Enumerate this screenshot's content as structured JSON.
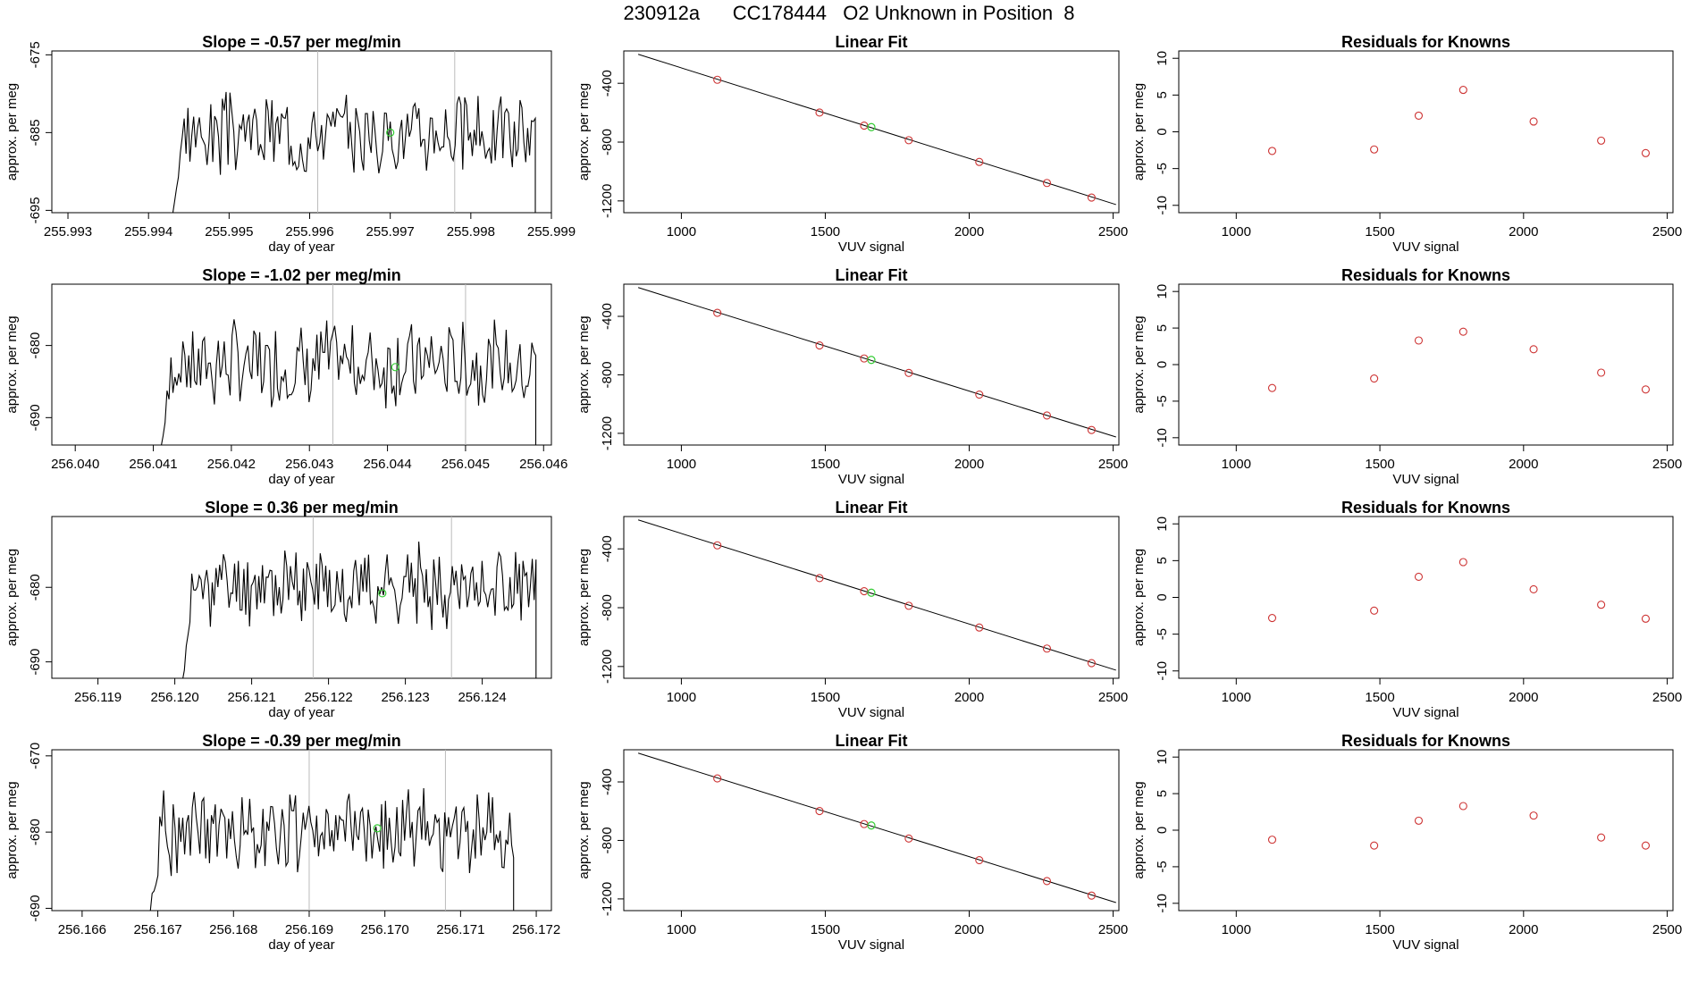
{
  "page_title": "230912a      CC178444   O2 Unknown in Position  8",
  "colors": {
    "line": "#000000",
    "known_point": "#cd3333",
    "unknown_point": "#33cc33",
    "vline": "#bbbbbb"
  },
  "rows": [
    {
      "trace": {
        "title": "Slope =  -0.57  per meg/min",
        "xlabel": "day of year",
        "ylabel": "approx. per meg",
        "xlim": [
          255.9928,
          255.999
        ],
        "ylim": [
          -695.3,
          -674.5
        ],
        "xticks": [
          "255.993",
          "255.994",
          "255.995",
          "255.996",
          "255.997",
          "255.998",
          "255.999"
        ],
        "yticks": [
          "-675",
          "-685",
          "-695"
        ],
        "vlines": [
          255.9961,
          255.9978
        ],
        "start": 255.9943,
        "end": 255.9988,
        "mean": -685,
        "amp": 4.2,
        "flat": -695.5,
        "seed": 3,
        "unknown": {
          "x": 255.997,
          "y": -685
        }
      },
      "fit": {
        "title": "Linear Fit",
        "xlabel": "VUV signal",
        "ylabel": "approx. per meg",
        "xlim": [
          800,
          2520
        ],
        "ylim": [
          -1280,
          -180
        ],
        "xticks": [
          "1000",
          "1500",
          "2000",
          "2500"
        ],
        "yticks": [
          "-400",
          "-800",
          "-1200"
        ],
        "line": [
          [
            850,
            -203
          ],
          [
            2510,
            -1225
          ]
        ],
        "knowns_x": [
          1125,
          1480,
          1635,
          1790,
          2035,
          2270,
          2425
        ],
        "knowns_y": [
          -376,
          -599,
          -688,
          -787,
          -935,
          -1078,
          -1177
        ],
        "unknown": {
          "x": 1660,
          "y": -698
        }
      },
      "resid": {
        "title": "Residuals for Knowns",
        "xlabel": "VUV signal",
        "ylabel": "approx. per meg",
        "xlim": [
          800,
          2520
        ],
        "ylim": [
          -11,
          11
        ],
        "xticks": [
          "1000",
          "1500",
          "2000",
          "2500"
        ],
        "yticks": [
          "-10",
          "-5",
          "0",
          "5",
          "10"
        ],
        "x": [
          1125,
          1480,
          1635,
          1790,
          2035,
          2270,
          2425
        ],
        "y": [
          -2.6,
          -2.4,
          2.2,
          5.7,
          1.4,
          -1.2,
          -2.9
        ]
      }
    },
    {
      "trace": {
        "title": "Slope =  -1.02  per meg/min",
        "xlabel": "day of year",
        "ylabel": "approx. per meg",
        "xlim": [
          256.0397,
          256.0461
        ],
        "ylim": [
          -693.8,
          -671.5
        ],
        "xticks": [
          "256.040",
          "256.041",
          "256.042",
          "256.043",
          "256.044",
          "256.045",
          "256.046"
        ],
        "yticks": [
          "-680",
          "-690"
        ],
        "vlines": [
          256.0433,
          256.045
        ],
        "start": 256.0411,
        "end": 256.0459,
        "mean": -682.5,
        "amp": 4.8,
        "flat": -694,
        "seed": 7,
        "unknown": {
          "x": 256.0441,
          "y": -683
        }
      },
      "fit": {
        "title": "Linear Fit",
        "xlabel": "VUV signal",
        "ylabel": "approx. per meg",
        "xlim": [
          800,
          2520
        ],
        "ylim": [
          -1280,
          -180
        ],
        "xticks": [
          "1000",
          "1500",
          "2000",
          "2500"
        ],
        "yticks": [
          "-400",
          "-800",
          "-1200"
        ],
        "line": [
          [
            850,
            -203
          ],
          [
            2510,
            -1225
          ]
        ],
        "knowns_x": [
          1125,
          1480,
          1635,
          1790,
          2035,
          2270,
          2425
        ],
        "knowns_y": [
          -376,
          -599,
          -688,
          -787,
          -935,
          -1078,
          -1177
        ],
        "unknown": {
          "x": 1660,
          "y": -698
        }
      },
      "resid": {
        "title": "Residuals for Knowns",
        "xlabel": "VUV signal",
        "ylabel": "approx. per meg",
        "xlim": [
          800,
          2520
        ],
        "ylim": [
          -11,
          11
        ],
        "xticks": [
          "1000",
          "1500",
          "2000",
          "2500"
        ],
        "yticks": [
          "-10",
          "-5",
          "0",
          "5",
          "10"
        ],
        "x": [
          1125,
          1480,
          1635,
          1790,
          2035,
          2270,
          2425
        ],
        "y": [
          -3.2,
          -1.9,
          3.3,
          4.5,
          2.1,
          -1.1,
          -3.4
        ]
      }
    },
    {
      "trace": {
        "title": "Slope =  0.36  per meg/min",
        "xlabel": "day of year",
        "ylabel": "approx. per meg",
        "xlim": [
          256.1184,
          256.1249
        ],
        "ylim": [
          -692.2,
          -670.5
        ],
        "xticks": [
          "256.119",
          "256.120",
          "256.121",
          "256.122",
          "256.123",
          "256.124"
        ],
        "yticks": [
          "-680",
          "-690"
        ],
        "vlines": [
          256.1218,
          256.1236
        ],
        "start": 256.1201,
        "end": 256.1247,
        "mean": -679.8,
        "amp": 4.3,
        "flat": -692.5,
        "seed": 11,
        "unknown": {
          "x": 256.1227,
          "y": -680.8
        }
      },
      "fit": {
        "title": "Linear Fit",
        "xlabel": "VUV signal",
        "ylabel": "approx. per meg",
        "xlim": [
          800,
          2520
        ],
        "ylim": [
          -1280,
          -180
        ],
        "xticks": [
          "1000",
          "1500",
          "2000",
          "2500"
        ],
        "yticks": [
          "-400",
          "-800",
          "-1200"
        ],
        "line": [
          [
            850,
            -203
          ],
          [
            2510,
            -1225
          ]
        ],
        "knowns_x": [
          1125,
          1480,
          1635,
          1790,
          2035,
          2270,
          2425
        ],
        "knowns_y": [
          -376,
          -599,
          -688,
          -787,
          -935,
          -1078,
          -1177
        ],
        "unknown": {
          "x": 1660,
          "y": -698
        }
      },
      "resid": {
        "title": "Residuals for Knowns",
        "xlabel": "VUV signal",
        "ylabel": "approx. per meg",
        "xlim": [
          800,
          2520
        ],
        "ylim": [
          -11,
          11
        ],
        "xticks": [
          "1000",
          "1500",
          "2000",
          "2500"
        ],
        "yticks": [
          "-10",
          "-5",
          "0",
          "5",
          "10"
        ],
        "x": [
          1125,
          1480,
          1635,
          1790,
          2035,
          2270,
          2425
        ],
        "y": [
          -2.8,
          -1.8,
          2.8,
          4.8,
          1.1,
          -1.0,
          -2.9
        ]
      }
    },
    {
      "trace": {
        "title": "Slope =  -0.39  per meg/min",
        "xlabel": "day of year",
        "ylabel": "approx. per meg",
        "xlim": [
          256.1656,
          256.1722
        ],
        "ylim": [
          -690.3,
          -669.2
        ],
        "xticks": [
          "256.166",
          "256.167",
          "256.168",
          "256.169",
          "256.170",
          "256.171",
          "256.172"
        ],
        "yticks": [
          "-670",
          "-680",
          "-690"
        ],
        "vlines": [
          256.169,
          256.1708
        ],
        "start": 256.1669,
        "end": 256.1717,
        "mean": -679.8,
        "amp": 4.5,
        "flat": -690.5,
        "seed": 19,
        "unknown": {
          "x": 256.1699,
          "y": -679.5
        }
      },
      "fit": {
        "title": "Linear Fit",
        "xlabel": "VUV signal",
        "ylabel": "approx. per meg",
        "xlim": [
          800,
          2520
        ],
        "ylim": [
          -1280,
          -180
        ],
        "xticks": [
          "1000",
          "1500",
          "2000",
          "2500"
        ],
        "yticks": [
          "-400",
          "-800",
          "-1200"
        ],
        "line": [
          [
            850,
            -203
          ],
          [
            2510,
            -1225
          ]
        ],
        "knowns_x": [
          1125,
          1480,
          1635,
          1790,
          2035,
          2270,
          2425
        ],
        "knowns_y": [
          -376,
          -599,
          -688,
          -787,
          -935,
          -1078,
          -1177
        ],
        "unknown": {
          "x": 1660,
          "y": -698
        }
      },
      "resid": {
        "title": "Residuals for Knowns",
        "xlabel": "VUV signal",
        "ylabel": "approx. per meg",
        "xlim": [
          800,
          2520
        ],
        "ylim": [
          -11,
          11
        ],
        "xticks": [
          "1000",
          "1500",
          "2000",
          "2500"
        ],
        "yticks": [
          "-10",
          "-5",
          "0",
          "5",
          "10"
        ],
        "x": [
          1125,
          1480,
          1635,
          1790,
          2035,
          2270,
          2425
        ],
        "y": [
          -1.3,
          -2.1,
          1.3,
          3.3,
          2.0,
          -1.0,
          -2.1
        ]
      }
    }
  ],
  "chart_data": [
    {
      "type": "line",
      "title": "Slope =  -0.57  per meg/min",
      "xlabel": "day of year",
      "ylabel": "approx. per meg",
      "xlim": [
        255.9928,
        255.999
      ],
      "ylim": [
        -695.3,
        -674.5
      ]
    },
    {
      "type": "scatter",
      "title": "Linear Fit",
      "xlabel": "VUV signal",
      "ylabel": "approx. per meg",
      "x": [
        1125,
        1480,
        1635,
        1790,
        2035,
        2270,
        2425
      ],
      "y": [
        -376,
        -599,
        -688,
        -787,
        -935,
        -1078,
        -1177
      ]
    },
    {
      "type": "scatter",
      "title": "Residuals for Knowns",
      "xlabel": "VUV signal",
      "ylabel": "approx. per meg",
      "x": [
        1125,
        1480,
        1635,
        1790,
        2035,
        2270,
        2425
      ],
      "y": [
        -2.6,
        -2.4,
        2.2,
        5.7,
        1.4,
        -1.2,
        -2.9
      ]
    },
    {
      "type": "line",
      "title": "Slope =  -1.02  per meg/min",
      "xlabel": "day of year",
      "ylabel": "approx. per meg",
      "xlim": [
        256.0397,
        256.0461
      ],
      "ylim": [
        -693.8,
        -671.5
      ]
    },
    {
      "type": "scatter",
      "title": "Linear Fit",
      "xlabel": "VUV signal",
      "ylabel": "approx. per meg",
      "x": [
        1125,
        1480,
        1635,
        1790,
        2035,
        2270,
        2425
      ],
      "y": [
        -376,
        -599,
        -688,
        -787,
        -935,
        -1078,
        -1177
      ]
    },
    {
      "type": "scatter",
      "title": "Residuals for Knowns",
      "xlabel": "VUV signal",
      "ylabel": "approx. per meg",
      "x": [
        1125,
        1480,
        1635,
        1790,
        2035,
        2270,
        2425
      ],
      "y": [
        -3.2,
        -1.9,
        3.3,
        4.5,
        2.1,
        -1.1,
        -3.4
      ]
    },
    {
      "type": "line",
      "title": "Slope =  0.36  per meg/min",
      "xlabel": "day of year",
      "ylabel": "approx. per meg",
      "xlim": [
        256.1184,
        256.1249
      ],
      "ylim": [
        -692.2,
        -670.5
      ]
    },
    {
      "type": "scatter",
      "title": "Linear Fit",
      "xlabel": "VUV signal",
      "ylabel": "approx. per meg",
      "x": [
        1125,
        1480,
        1635,
        1790,
        2035,
        2270,
        2425
      ],
      "y": [
        -376,
        -599,
        -688,
        -787,
        -935,
        -1078,
        -1177
      ]
    },
    {
      "type": "scatter",
      "title": "Residuals for Knowns",
      "xlabel": "VUV signal",
      "ylabel": "approx. per meg",
      "x": [
        1125,
        1480,
        1635,
        1790,
        2035,
        2270,
        2425
      ],
      "y": [
        -2.8,
        -1.8,
        2.8,
        4.8,
        1.1,
        -1.0,
        -2.9
      ]
    },
    {
      "type": "line",
      "title": "Slope =  -0.39  per meg/min",
      "xlabel": "day of year",
      "ylabel": "approx. per meg",
      "xlim": [
        256.1656,
        256.1722
      ],
      "ylim": [
        -690.3,
        -669.2
      ]
    },
    {
      "type": "scatter",
      "title": "Linear Fit",
      "xlabel": "VUV signal",
      "ylabel": "approx. per meg",
      "x": [
        1125,
        1480,
        1635,
        1790,
        2035,
        2270,
        2425
      ],
      "y": [
        -376,
        -599,
        -688,
        -787,
        -935,
        -1078,
        -1177
      ]
    },
    {
      "type": "scatter",
      "title": "Residuals for Knowns",
      "xlabel": "VUV signal",
      "ylabel": "approx. per meg",
      "x": [
        1125,
        1480,
        1635,
        1790,
        2035,
        2270,
        2425
      ],
      "y": [
        -1.3,
        -2.1,
        1.3,
        3.3,
        2.0,
        -1.0,
        -2.1
      ]
    }
  ]
}
